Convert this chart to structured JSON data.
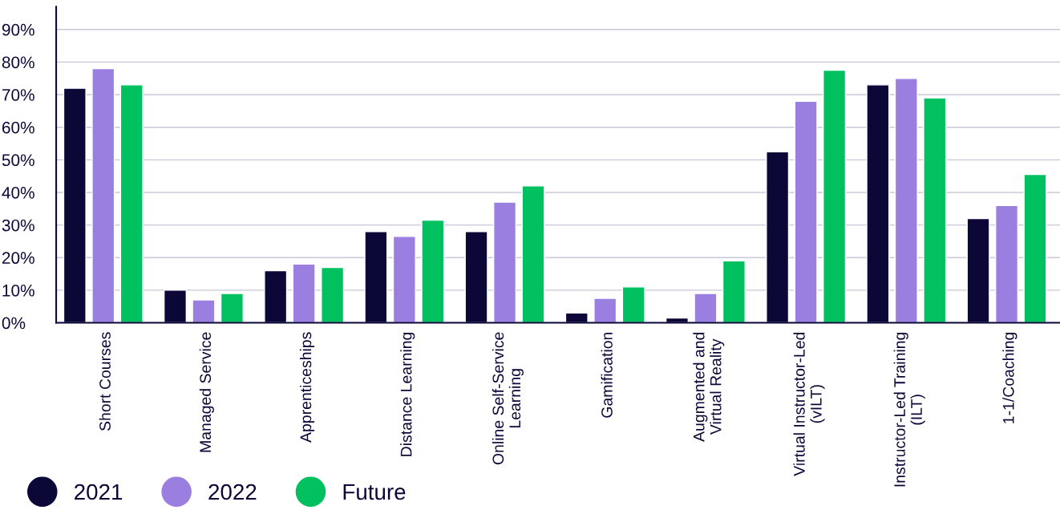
{
  "chart_data": {
    "type": "bar",
    "categories": [
      "Short Courses",
      "Managed Service",
      "Apprenticeships",
      "Distance Learning",
      "Online Self-Service\nLearning",
      "Gamification",
      "Augmented and\nVirtual Reality",
      "Virtual Instructor-Led\n(vILT)",
      "Instructor-Led Training\n(ILT)",
      "1-1/Coaching"
    ],
    "series": [
      {
        "name": "2021",
        "color": "#0b0838",
        "values": [
          72,
          10,
          16,
          28,
          28,
          3,
          1.5,
          52.5,
          73,
          32
        ]
      },
      {
        "name": "2022",
        "color": "#9a7fe0",
        "values": [
          78,
          7,
          18,
          26.5,
          37,
          7.5,
          9,
          68,
          75,
          36
        ]
      },
      {
        "name": "Future",
        "color": "#00c060",
        "values": [
          73,
          9,
          17,
          31.5,
          42,
          11,
          19,
          77.5,
          69,
          45.5
        ]
      }
    ],
    "ylim": [
      0,
      97
    ],
    "yticks": [
      {
        "value": 0,
        "label": "0%"
      },
      {
        "value": 10,
        "label": "10%"
      },
      {
        "value": 20,
        "label": "20%"
      },
      {
        "value": 30,
        "label": "30%"
      },
      {
        "value": 40,
        "label": "40%"
      },
      {
        "value": 50,
        "label": "50%"
      },
      {
        "value": 60,
        "label": "60%"
      },
      {
        "value": 70,
        "label": "70%"
      },
      {
        "value": 80,
        "label": "80%"
      },
      {
        "value": 90,
        "label": "90%"
      }
    ],
    "grid": "y",
    "legend": "bottom left"
  }
}
